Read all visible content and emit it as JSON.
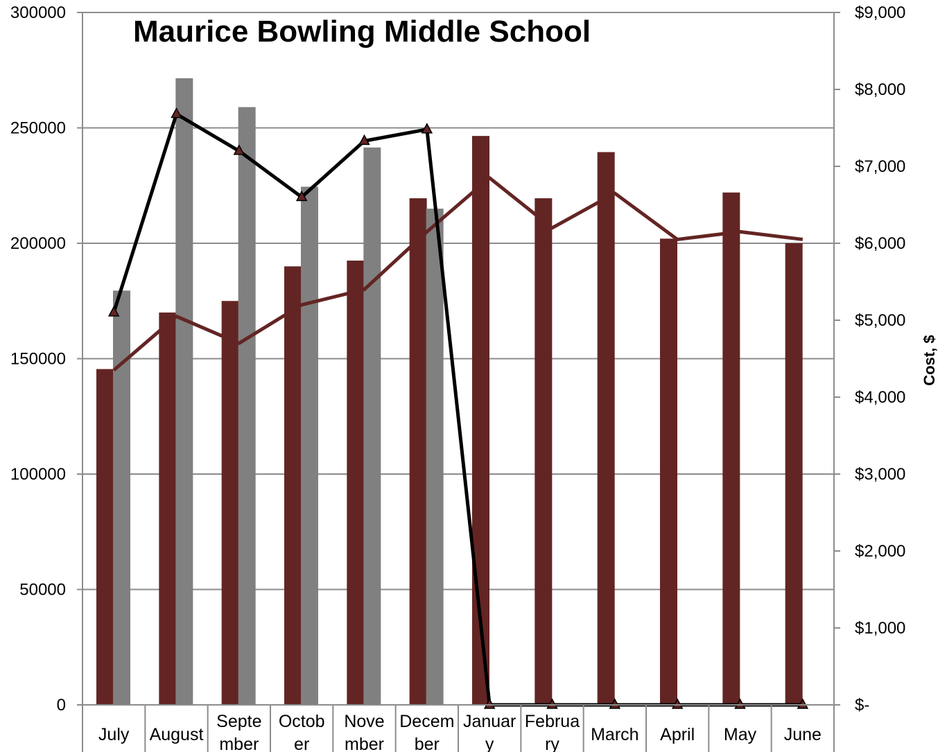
{
  "chart_data": {
    "type": "bar",
    "title": "Maurice Bowling Middle School",
    "categories": [
      "July",
      "August",
      "September",
      "October",
      "November",
      "December",
      "January",
      "February",
      "March",
      "April",
      "May",
      "June"
    ],
    "category_labels": [
      [
        "July"
      ],
      [
        "August"
      ],
      [
        "Septe",
        "mber"
      ],
      [
        "Octob",
        "er"
      ],
      [
        "Nove",
        "mber"
      ],
      [
        "Decem",
        "ber"
      ],
      [
        "Januar",
        "y"
      ],
      [
        "Februa",
        "ry"
      ],
      [
        "March"
      ],
      [
        "April"
      ],
      [
        "May"
      ],
      [
        "June"
      ]
    ],
    "y_left": {
      "ylim": [
        0,
        300000
      ],
      "ticks": [
        "0",
        "50000",
        "100000",
        "150000",
        "200000",
        "250000",
        "300000"
      ]
    },
    "y_right": {
      "label": "Cost, $",
      "ylim": [
        0,
        9000
      ],
      "ticks": [
        "$-",
        "$1,000",
        "$2,000",
        "$3,000",
        "$4,000",
        "$5,000",
        "$6,000",
        "$7,000",
        "$8,000",
        "$9,000"
      ]
    },
    "grid": true,
    "series": [
      {
        "type": "bar",
        "axis": "left",
        "color": "#632523",
        "values": [
          145500,
          170000,
          175000,
          190000,
          192500,
          219500,
          246500,
          219500,
          239500,
          202000,
          222000,
          200000
        ]
      },
      {
        "type": "bar",
        "axis": "left",
        "color": "#808080",
        "values": [
          179500,
          271500,
          259000,
          224500,
          241500,
          215000,
          null,
          null,
          null,
          null,
          null,
          null
        ]
      },
      {
        "type": "line",
        "axis": "right",
        "color": "#632523",
        "values": [
          4350,
          5050,
          4700,
          5200,
          5400,
          6150,
          6850,
          6200,
          6650,
          6050,
          6150,
          6050
        ]
      },
      {
        "type": "line",
        "axis": "right",
        "color": "#000000",
        "marker": "triangle",
        "marker_color": "#632523",
        "values": [
          5100,
          7680,
          7200,
          6600,
          7330,
          7480,
          0,
          0,
          0,
          0,
          0,
          0
        ]
      }
    ]
  }
}
